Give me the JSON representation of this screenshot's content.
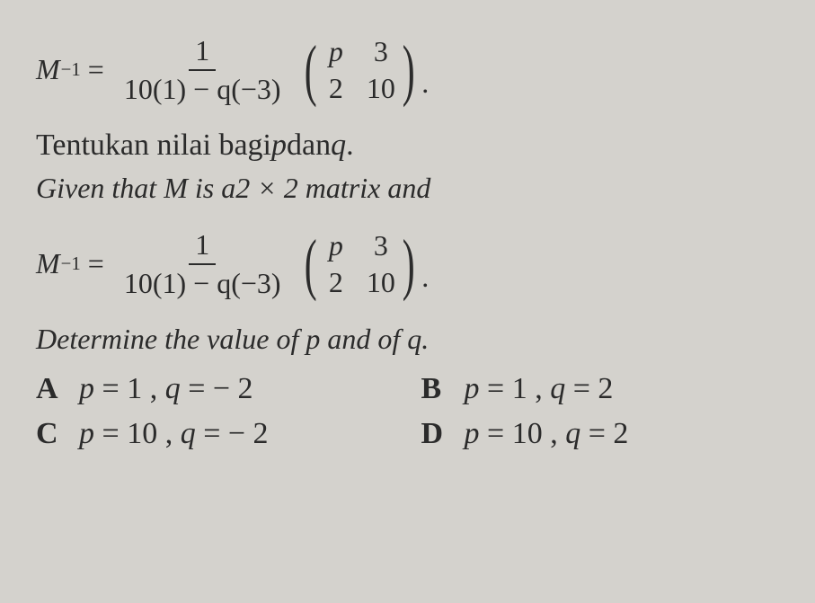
{
  "eq1": {
    "lhs_var": "M",
    "lhs_sup": "−1",
    "eq": "=",
    "frac_num": "1",
    "frac_den": "10(1) − q(−3)",
    "m11_var": "p",
    "m12": "3",
    "m21": "2",
    "m22": "10",
    "period": "."
  },
  "text1": {
    "pre": "Tentukan nilai bagi ",
    "p": "p",
    "mid": " dan ",
    "q": "q",
    "post": "."
  },
  "text2": {
    "pre": "Given that M is a ",
    "dim": "2 × 2",
    "post": " matrix and"
  },
  "eq2": {
    "lhs_var": "M",
    "lhs_sup": "−1",
    "eq": "=",
    "frac_num": "1",
    "frac_den": "10(1) − q(−3)",
    "m11_var": "p",
    "m12": "3",
    "m21": "2",
    "m22": "10",
    "period": "."
  },
  "text3": "Determine the value of p and of q.",
  "options": {
    "A": {
      "label": "A",
      "p": "p",
      "eq1": " = ",
      "pv": "1",
      "sep": " , ",
      "q": "q",
      "eq2": " = ",
      "qv": "− 2"
    },
    "B": {
      "label": "B",
      "p": "p",
      "eq1": " = ",
      "pv": "1",
      "sep": " , ",
      "q": "q",
      "eq2": " = ",
      "qv": "2"
    },
    "C": {
      "label": "C",
      "p": "p",
      "eq1": " = ",
      "pv": "10",
      "sep": " , ",
      "q": "q",
      "eq2": " = ",
      "qv": "− 2"
    },
    "D": {
      "label": "D",
      "p": "p",
      "eq1": " = ",
      "pv": "10",
      "sep": " , ",
      "q": "q",
      "eq2": " = ",
      "qv": "2"
    }
  }
}
